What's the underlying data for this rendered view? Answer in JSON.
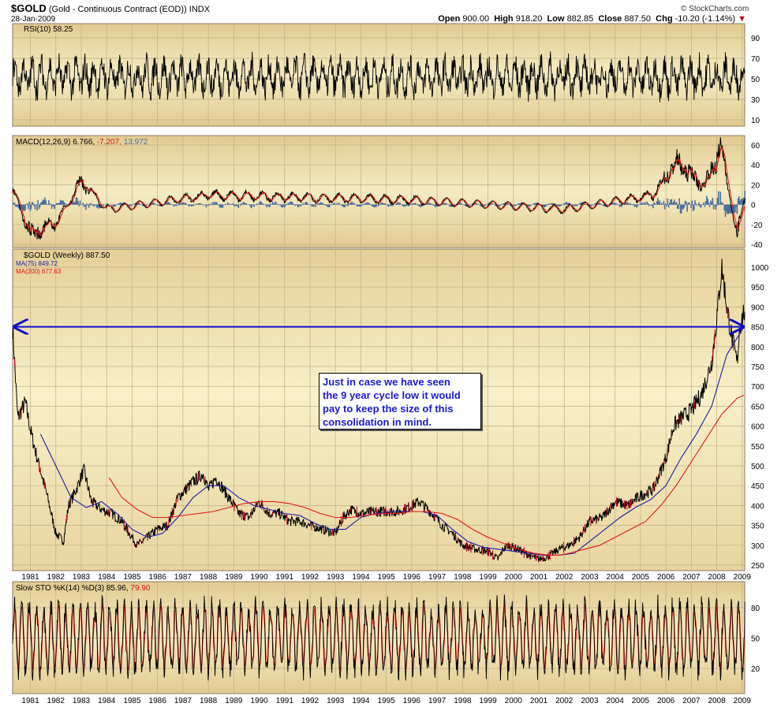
{
  "header": {
    "symbol": "$GOLD",
    "desc": "(Gold - Continuous Contract (EOD))",
    "exchange": "INDX",
    "date": "28-Jan-2009",
    "watermark": "© StockCharts.com",
    "open_label": "Open",
    "open": "900.00",
    "high_label": "High",
    "high": "918.20",
    "low_label": "Low",
    "low": "882.85",
    "close_label": "Close",
    "close": "887.50",
    "chg_label": "Chg",
    "chg": "-10.20 (-1.14%)"
  },
  "rsi": {
    "label": "RSI(10) 58.25",
    "ticks": [
      90,
      70,
      50,
      30,
      10
    ]
  },
  "macd": {
    "label_main": "MACD(12,26,9) 6.766,",
    "label_signal": "-7.207,",
    "label_hist": "13.972",
    "ticks": [
      60,
      40,
      20,
      0,
      -20,
      -40
    ]
  },
  "price": {
    "label": "$GOLD (Weekly) 887.50",
    "ma75_label": "MA(75) 849.72",
    "ma200_label": "MA(200) 677.63",
    "ticks": [
      1000,
      950,
      900,
      850,
      800,
      750,
      700,
      650,
      600,
      550,
      500,
      450,
      400,
      350,
      300,
      250
    ],
    "horizontal_level": 850
  },
  "stoch": {
    "label_main": "Slow STO %K(14) %D(3) 85.96,",
    "label_d": "79.90",
    "ticks": [
      80,
      50,
      20
    ]
  },
  "years": [
    "1981",
    "1982",
    "1983",
    "1984",
    "1985",
    "1986",
    "1987",
    "1988",
    "1989",
    "1990",
    "1991",
    "1992",
    "1993",
    "1994",
    "1995",
    "1996",
    "1997",
    "1998",
    "1999",
    "2000",
    "2001",
    "2002",
    "2003",
    "2004",
    "2005",
    "2006",
    "2007",
    "2008",
    "2009"
  ],
  "annotation": {
    "line1": "Just in case we have seen",
    "line2": "the 9 year cycle low it would",
    "line3": "pay to keep the size of this",
    "line4": "consolidation in mind."
  },
  "colors": {
    "panel_bg": "#efe0b4",
    "price_line": "#000000",
    "ma75": "#1c1caa",
    "ma200": "#e01818",
    "macd_hist": "#4a6fa0",
    "arrow_line": "#1010c8",
    "down": "#c00020"
  },
  "chart_data": {
    "type": "line",
    "title": "$GOLD (Gold - Continuous Contract (EOD))",
    "x_range": [
      1980.3,
      2009.1
    ],
    "series": [
      {
        "name": "$GOLD (Weekly)",
        "x": [
          1980.3,
          1980.5,
          1980.8,
          1981.0,
          1981.3,
          1981.6,
          1982.0,
          1982.3,
          1982.5,
          1982.8,
          1983.1,
          1983.4,
          1983.8,
          1984.2,
          1984.6,
          1985.0,
          1985.2,
          1985.6,
          1986.0,
          1986.4,
          1986.8,
          1987.1,
          1987.4,
          1987.8,
          1988.0,
          1988.3,
          1988.8,
          1989.2,
          1989.6,
          1990.0,
          1990.4,
          1990.8,
          1991.2,
          1991.6,
          1992.0,
          1992.5,
          1993.0,
          1993.3,
          1993.6,
          1994.0,
          1994.5,
          1995.0,
          1995.5,
          1996.0,
          1996.3,
          1996.8,
          1997.2,
          1997.6,
          1998.0,
          1998.5,
          1999.0,
          1999.4,
          1999.6,
          1999.8,
          2000.2,
          2000.6,
          2001.0,
          2001.3,
          2001.8,
          2002.2,
          2002.6,
          2003.0,
          2003.5,
          2004.0,
          2004.5,
          2005.0,
          2005.5,
          2006.0,
          2006.3,
          2006.6,
          2007.0,
          2007.4,
          2007.8,
          2008.0,
          2008.2,
          2008.4,
          2008.6,
          2008.8,
          2008.9,
          2009.07
        ],
        "values": [
          850,
          620,
          660,
          590,
          510,
          440,
          330,
          310,
          400,
          440,
          490,
          410,
          390,
          380,
          360,
          320,
          300,
          320,
          340,
          350,
          420,
          440,
          460,
          480,
          440,
          470,
          420,
          380,
          370,
          410,
          380,
          380,
          360,
          360,
          350,
          340,
          330,
          370,
          390,
          380,
          385,
          385,
          385,
          400,
          410,
          380,
          350,
          330,
          300,
          290,
          285,
          265,
          290,
          300,
          290,
          275,
          265,
          270,
          290,
          300,
          320,
          360,
          370,
          410,
          400,
          425,
          440,
          520,
          600,
          620,
          640,
          680,
          760,
          870,
          1000,
          900,
          820,
          760,
          850,
          887.5
        ]
      },
      {
        "name": "MA(75)",
        "x": [
          1981.4,
          1982.0,
          1982.6,
          1983.2,
          1983.8,
          1984.4,
          1985.0,
          1985.6,
          1986.2,
          1986.8,
          1987.4,
          1988.0,
          1988.6,
          1989.2,
          1989.8,
          1990.4,
          1991.0,
          1991.6,
          1992.2,
          1992.8,
          1993.4,
          1994.0,
          1994.6,
          1995.2,
          1995.8,
          1996.4,
          1997.0,
          1997.6,
          1998.2,
          1998.8,
          1999.4,
          2000.0,
          2000.6,
          2001.2,
          2001.8,
          2002.4,
          2003.0,
          2003.6,
          2004.2,
          2004.8,
          2005.4,
          2006.0,
          2006.6,
          2007.2,
          2007.8,
          2008.4,
          2009.07
        ],
        "values": [
          580,
          500,
          420,
          395,
          410,
          380,
          340,
          320,
          330,
          370,
          420,
          450,
          450,
          420,
          400,
          390,
          380,
          375,
          355,
          340,
          340,
          370,
          380,
          385,
          385,
          385,
          375,
          340,
          310,
          295,
          290,
          285,
          280,
          275,
          275,
          280,
          310,
          340,
          370,
          395,
          415,
          450,
          520,
          580,
          650,
          780,
          849.72
        ]
      },
      {
        "name": "MA(200)",
        "x": [
          1984.1,
          1984.6,
          1985.2,
          1985.8,
          1986.4,
          1987.0,
          1987.6,
          1988.2,
          1988.8,
          1989.4,
          1990.0,
          1990.6,
          1991.2,
          1991.8,
          1992.4,
          1993.0,
          1993.6,
          1994.2,
          1994.8,
          1995.4,
          1996.0,
          1996.6,
          1997.2,
          1997.8,
          1998.4,
          1999.0,
          1999.6,
          2000.2,
          2000.8,
          2001.4,
          2001.8,
          2002.2,
          2002.8,
          2003.4,
          2004.0,
          2004.6,
          2005.2,
          2005.8,
          2006.4,
          2007.0,
          2007.6,
          2008.2,
          2008.8,
          2009.07
        ],
        "values": [
          470,
          420,
          390,
          370,
          370,
          375,
          380,
          385,
          395,
          405,
          410,
          410,
          405,
          395,
          380,
          370,
          370,
          375,
          380,
          380,
          385,
          385,
          380,
          365,
          340,
          320,
          305,
          290,
          280,
          275,
          275,
          280,
          290,
          300,
          320,
          340,
          360,
          400,
          450,
          510,
          570,
          630,
          670,
          677.63
        ]
      }
    ],
    "indicators": {
      "rsi_last": 58.25,
      "macd": [
        6.766,
        -7.207,
        13.972
      ],
      "stoch": [
        85.96,
        79.9
      ]
    },
    "ylim_price": [
      250,
      1000
    ],
    "ylim_rsi": [
      10,
      90
    ],
    "ylim_macd": [
      -40,
      60
    ],
    "ylim_stoch": [
      20,
      80
    ],
    "grid": true
  }
}
